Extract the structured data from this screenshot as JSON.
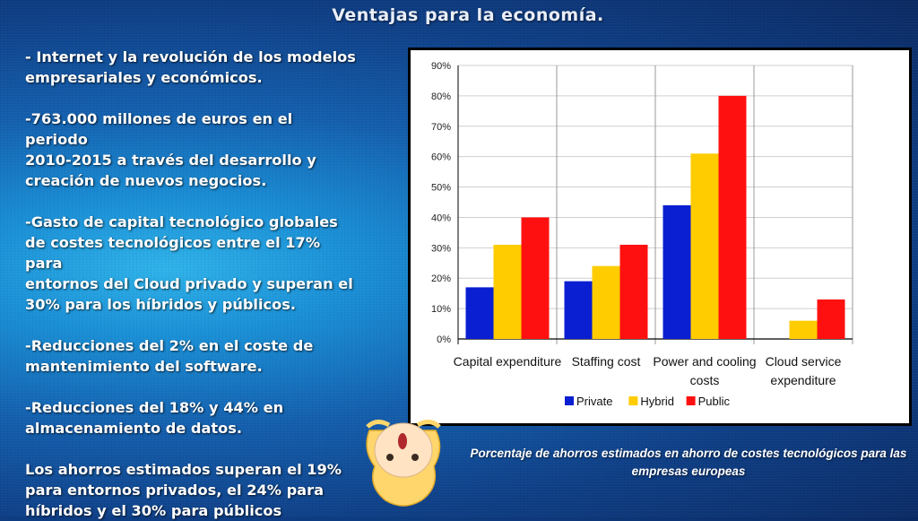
{
  "slide": {
    "title": "Ventajas para la economía.",
    "paragraphs": [
      "- Internet y la revolución de los modelos\nempresariales y económicos.",
      "-763.000 millones de euros en el periodo\n2010-2015 a través del desarrollo y\ncreación de nuevos negocios.",
      "-Gasto de capital tecnológico globales\nde costes tecnológicos entre el 17% para\nentornos del Cloud privado y superan el\n30% para los híbridos y públicos.",
      "-Reducciones del 2% en el coste de\nmantenimiento del software.",
      "-Reducciones del 18% y 44% en\nalmacenamiento de datos.",
      "Los ahorros estimados superan el 19%\npara entornos privados, el 24% para\nhíbridos y el 30% para públicos"
    ],
    "caption": "Porcentaje de ahorros estimados en ahorro de costes tecnológicos para las empresas europeas"
  },
  "chart_data": {
    "type": "bar",
    "categories": [
      "Capital expenditure",
      "Staffing cost",
      "Power and cooling costs",
      "Cloud service expenditure"
    ],
    "series": [
      {
        "name": "Private",
        "color": "#0a1fd1",
        "values": [
          17,
          19,
          44,
          0
        ]
      },
      {
        "name": "Hybrid",
        "color": "#ffcc00",
        "values": [
          31,
          24,
          61,
          6
        ]
      },
      {
        "name": "Public",
        "color": "#ff1010",
        "values": [
          40,
          31,
          80,
          13
        ]
      }
    ],
    "ylim": [
      0,
      90
    ],
    "yticks": [
      "0%",
      "10%",
      "20%",
      "30%",
      "40%",
      "50%",
      "60%",
      "70%",
      "80%",
      "90%"
    ],
    "grid": true,
    "legend": "bottom"
  }
}
